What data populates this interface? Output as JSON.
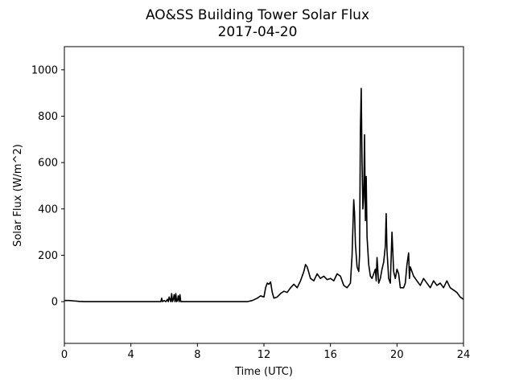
{
  "chart_data": {
    "type": "line",
    "title": "AO&SS Building Tower Solar Flux",
    "subtitle": "2017-04-20",
    "xlabel": "Time (UTC)",
    "ylabel": "Solar Flux (W/m^2)",
    "xlim": [
      0,
      24
    ],
    "ylim": [
      -180,
      1100
    ],
    "xticks": [
      0,
      4,
      8,
      12,
      16,
      20,
      24
    ],
    "xtick_labels": [
      "0",
      "4",
      "8",
      "12",
      "16",
      "20",
      "24"
    ],
    "yticks": [
      0,
      200,
      400,
      600,
      800,
      1000
    ],
    "ytick_labels": [
      "0",
      "200",
      "400",
      "600",
      "800",
      "1000"
    ],
    "grid": false,
    "legend": "none",
    "line_color": "#000000",
    "series": [
      {
        "x": [
          0,
          0.3,
          0.6,
          0.9,
          1.2,
          2,
          3,
          4,
          5,
          5.8,
          5.85,
          5.9,
          6.0,
          6.1,
          6.2,
          6.25,
          6.3,
          6.4,
          6.45,
          6.5,
          6.55,
          6.6,
          6.65,
          6.7,
          6.75,
          6.8,
          6.85,
          6.9,
          6.95,
          7.0,
          7.5,
          8,
          9,
          10,
          11,
          11.3,
          11.6,
          11.8,
          12.0,
          12.1,
          12.2,
          12.3,
          12.4,
          12.5,
          12.6,
          12.8,
          13.0,
          13.2,
          13.4,
          13.6,
          13.8,
          14.0,
          14.2,
          14.4,
          14.5,
          14.6,
          14.8,
          15.0,
          15.2,
          15.4,
          15.6,
          15.8,
          16.0,
          16.2,
          16.4,
          16.6,
          16.8,
          17.0,
          17.2,
          17.3,
          17.4,
          17.45,
          17.5,
          17.6,
          17.7,
          17.75,
          17.8,
          17.85,
          17.9,
          17.95,
          18.0,
          18.05,
          18.1,
          18.15,
          18.2,
          18.3,
          18.4,
          18.5,
          18.6,
          18.7,
          18.75,
          18.8,
          18.9,
          19.0,
          19.1,
          19.2,
          19.3,
          19.35,
          19.4,
          19.5,
          19.6,
          19.7,
          19.8,
          19.9,
          20.0,
          20.1,
          20.2,
          20.4,
          20.5,
          20.6,
          20.7,
          20.75,
          20.8,
          20.9,
          21.0,
          21.1,
          21.2,
          21.4,
          21.6,
          21.8,
          22.0,
          22.2,
          22.4,
          22.6,
          22.8,
          23.0,
          23.2,
          23.4,
          23.6,
          23.8,
          24.0
        ],
        "y": [
          5,
          5,
          3,
          1,
          0,
          0,
          0,
          0,
          0,
          0,
          15,
          0,
          5,
          0,
          10,
          0,
          20,
          0,
          35,
          0,
          10,
          30,
          0,
          35,
          0,
          5,
          25,
          0,
          30,
          0,
          0,
          0,
          0,
          0,
          0,
          5,
          15,
          25,
          20,
          60,
          80,
          75,
          85,
          40,
          15,
          20,
          35,
          45,
          40,
          60,
          75,
          60,
          90,
          130,
          160,
          150,
          100,
          90,
          120,
          100,
          110,
          95,
          100,
          90,
          120,
          110,
          70,
          60,
          80,
          200,
          440,
          380,
          250,
          150,
          130,
          200,
          740,
          920,
          600,
          400,
          450,
          720,
          350,
          540,
          280,
          160,
          110,
          100,
          120,
          140,
          90,
          190,
          80,
          100,
          140,
          170,
          240,
          380,
          220,
          100,
          80,
          300,
          130,
          100,
          140,
          120,
          60,
          60,
          80,
          160,
          210,
          100,
          150,
          130,
          110,
          100,
          90,
          70,
          100,
          80,
          60,
          90,
          70,
          80,
          60,
          90,
          60,
          50,
          40,
          20,
          10
        ]
      }
    ]
  }
}
